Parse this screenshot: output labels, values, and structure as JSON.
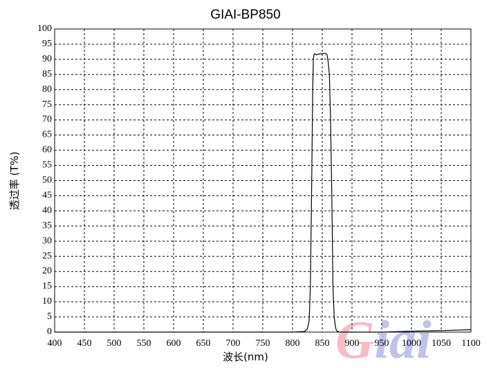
{
  "chart_data": {
    "type": "line",
    "title": "GIAI-BP850",
    "xlabel": "波长(nm)",
    "ylabel": "透过率 (T%)",
    "xlim": [
      400,
      1100
    ],
    "ylim": [
      0,
      100
    ],
    "grid": true,
    "x_ticks": [
      400,
      450,
      500,
      550,
      600,
      650,
      700,
      750,
      800,
      850,
      900,
      950,
      1000,
      1050,
      1100
    ],
    "y_ticks": [
      0,
      5,
      10,
      15,
      20,
      25,
      30,
      35,
      40,
      45,
      50,
      55,
      60,
      65,
      70,
      75,
      80,
      85,
      90,
      95,
      100
    ],
    "series": [
      {
        "x": [
          400,
          500,
          600,
          700,
          800,
          820,
          825,
          828,
          830,
          832,
          834,
          835,
          836,
          837,
          838,
          840,
          845,
          850,
          855,
          858,
          860,
          862,
          864,
          866,
          868,
          870,
          872,
          873,
          874,
          875,
          876,
          878,
          880,
          890,
          900,
          950,
          1000,
          1050,
          1100
        ],
        "y": [
          0,
          0,
          0,
          0,
          0,
          0.2,
          1,
          4,
          15,
          45,
          80,
          90,
          91.5,
          91.8,
          91.8,
          91.5,
          91.8,
          91.8,
          92,
          91.5,
          89,
          85,
          70,
          45,
          15,
          5,
          2,
          1,
          0.5,
          0.3,
          0.2,
          0.1,
          0,
          0,
          0,
          0,
          0.3,
          0.5,
          0.8
        ]
      }
    ]
  },
  "watermark": {
    "text": "Giai",
    "colors": [
      "#e0415a",
      "#4a56c2"
    ]
  }
}
